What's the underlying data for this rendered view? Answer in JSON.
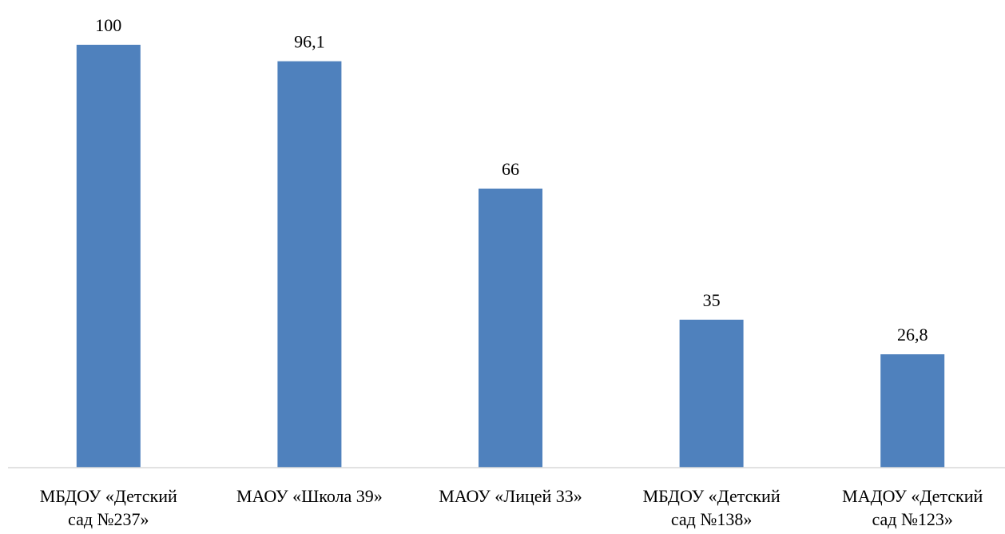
{
  "chart_data": {
    "type": "bar",
    "categories": [
      [
        "МБДОУ «Детский",
        "сад №237»"
      ],
      [
        "МАОУ «Школа 39»"
      ],
      [
        "МАОУ «Лицей 33»"
      ],
      [
        "МБДОУ «Детский",
        "сад №138»"
      ],
      [
        "МАДОУ «Детский",
        "сад №123»"
      ]
    ],
    "values": [
      100,
      96.1,
      66,
      35,
      26.8
    ],
    "value_labels": [
      "100",
      "96,1",
      "66",
      "35",
      "26,8"
    ],
    "title": "",
    "xlabel": "",
    "ylabel": "",
    "ylim": [
      0,
      100
    ],
    "grid": false,
    "legend": "none",
    "bar_color": "#4F81BD",
    "axis_color": "#D9D9D9"
  }
}
